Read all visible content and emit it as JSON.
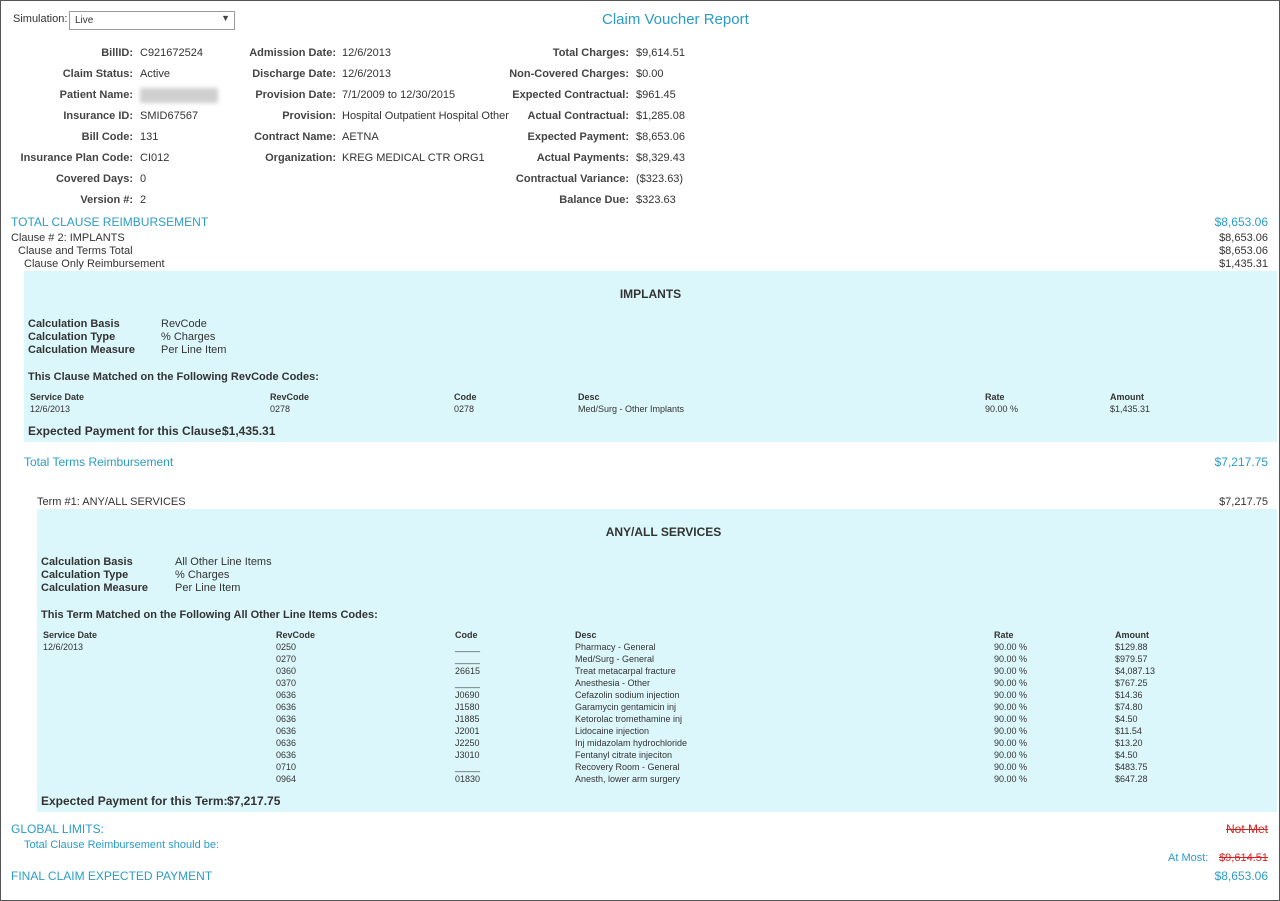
{
  "simulation": {
    "label": "Simulation:",
    "value": "Live"
  },
  "title": "Claim Voucher Report",
  "info": {
    "col1": [
      {
        "label": "BillID:",
        "value": "C921672524"
      },
      {
        "label": "Claim Status:",
        "value": "Active"
      },
      {
        "label": "Patient Name:",
        "value": ""
      },
      {
        "label": "Insurance ID:",
        "value": "SMID67567"
      },
      {
        "label": "Bill Code:",
        "value": "131"
      },
      {
        "label": "Insurance Plan Code:",
        "value": "CI012"
      },
      {
        "label": "Covered Days:",
        "value": "0"
      },
      {
        "label": "Version #:",
        "value": "2"
      }
    ],
    "col2": [
      {
        "label": "Admission Date:",
        "value": "12/6/2013"
      },
      {
        "label": "Discharge Date:",
        "value": "12/6/2013"
      },
      {
        "label": "Provision Date:",
        "value": "7/1/2009 to 12/30/2015"
      },
      {
        "label": "Provision:",
        "value": "Hospital Outpatient Hospital Other"
      },
      {
        "label": "Contract Name:",
        "value": "AETNA"
      },
      {
        "label": "Organization:",
        "value": "KREG MEDICAL CTR ORG1"
      }
    ],
    "col3": [
      {
        "label": "Total Charges:",
        "value": "$9,614.51"
      },
      {
        "label": "Non-Covered Charges:",
        "value": "$0.00"
      },
      {
        "label": "Expected Contractual:",
        "value": "$961.45"
      },
      {
        "label": "Actual Contractual:",
        "value": "$1,285.08"
      },
      {
        "label": "Expected Payment:",
        "value": "$8,653.06"
      },
      {
        "label": "Actual Payments:",
        "value": "$8,329.43"
      },
      {
        "label": "Contractual Variance:",
        "value": "($323.63)"
      },
      {
        "label": "Balance Due:",
        "value": "$323.63"
      }
    ]
  },
  "total_clause": {
    "label": "TOTAL CLAUSE REIMBURSEMENT",
    "value": "$8,653.06"
  },
  "clause": {
    "label": "Clause # 2: IMPLANTS",
    "value": "$8,653.06",
    "terms_total_label": "Clause and Terms Total",
    "terms_total_value": "$8,653.06",
    "only_label": "Clause Only Reimbursement",
    "only_value": "$1,435.31"
  },
  "implants": {
    "heading": "IMPLANTS",
    "calc": [
      {
        "label": "Calculation Basis",
        "value": "RevCode"
      },
      {
        "label": "Calculation Type",
        "value": "% Charges"
      },
      {
        "label": "Calculation Measure",
        "value": "Per Line Item"
      }
    ],
    "matched_label": "This Clause Matched on the Following RevCode Codes:",
    "headers": {
      "date": "Service Date",
      "rev": "RevCode",
      "code": "Code",
      "desc": "Desc",
      "rate": "Rate",
      "amount": "Amount"
    },
    "rows": [
      {
        "date": "12/6/2013",
        "rev": "0278",
        "code": "0278",
        "desc": "Med/Surg - Other Implants",
        "rate": "90.00 %",
        "amount": "$1,435.31"
      }
    ],
    "expected_label": "Expected Payment for this Clause:",
    "expected_value": "$1,435.31"
  },
  "total_terms": {
    "label": "Total Terms Reimbursement",
    "value": "$7,217.75"
  },
  "term": {
    "label": "Term #1: ANY/ALL SERVICES",
    "value": "$7,217.75"
  },
  "services": {
    "heading": "ANY/ALL SERVICES",
    "calc": [
      {
        "label": "Calculation Basis",
        "value": "All Other Line Items"
      },
      {
        "label": "Calculation Type",
        "value": "% Charges"
      },
      {
        "label": "Calculation Measure",
        "value": "Per Line Item"
      }
    ],
    "matched_label": "This Term Matched on the Following All Other Line Items Codes:",
    "headers": {
      "date": "Service Date",
      "rev": "RevCode",
      "code": "Code",
      "desc": "Desc",
      "rate": "Rate",
      "amount": "Amount"
    },
    "service_date": "12/6/2013",
    "rows": [
      {
        "rev": "0250",
        "code": "_____",
        "desc": "Pharmacy - General",
        "rate": "90.00 %",
        "amount": "$129.88"
      },
      {
        "rev": "0270",
        "code": "_____",
        "desc": "Med/Surg - General",
        "rate": "90.00 %",
        "amount": "$979.57"
      },
      {
        "rev": "0360",
        "code": "26615",
        "desc": "Treat metacarpal fracture",
        "rate": "90.00 %",
        "amount": "$4,087.13"
      },
      {
        "rev": "0370",
        "code": "_____",
        "desc": "Anesthesia - Other",
        "rate": "90.00 %",
        "amount": "$767.25"
      },
      {
        "rev": "0636",
        "code": "J0690",
        "desc": "Cefazolin sodium injection",
        "rate": "90.00 %",
        "amount": "$14.36"
      },
      {
        "rev": "0636",
        "code": "J1580",
        "desc": "Garamycin gentamicin inj",
        "rate": "90.00 %",
        "amount": "$74.80"
      },
      {
        "rev": "0636",
        "code": "J1885",
        "desc": "Ketorolac tromethamine inj",
        "rate": "90.00 %",
        "amount": "$4.50"
      },
      {
        "rev": "0636",
        "code": "J2001",
        "desc": "Lidocaine injection",
        "rate": "90.00 %",
        "amount": "$11.54"
      },
      {
        "rev": "0636",
        "code": "J2250",
        "desc": "Inj midazolam hydrochloride",
        "rate": "90.00 %",
        "amount": "$13.20"
      },
      {
        "rev": "0636",
        "code": "J3010",
        "desc": "Fentanyl citrate injeciton",
        "rate": "90.00 %",
        "amount": "$4.50"
      },
      {
        "rev": "0710",
        "code": "_____",
        "desc": "Recovery Room - General",
        "rate": "90.00 %",
        "amount": "$483.75"
      },
      {
        "rev": "0964",
        "code": "01830",
        "desc": "Anesth, lower arm surgery",
        "rate": "90.00 %",
        "amount": "$647.28"
      }
    ],
    "expected_label": "Expected Payment for this Term:",
    "expected_value": "$7,217.75"
  },
  "global": {
    "label": "GLOBAL LIMITS:",
    "status": "Not Met",
    "should_be_label": "Total Clause Reimbursement should be:",
    "at_most_label": "At Most:",
    "at_most_value": "$9,614.51"
  },
  "final": {
    "label": "FINAL CLAIM EXPECTED PAYMENT",
    "value": "$8,653.06"
  },
  "colors": {
    "accent": "#2b9cc7",
    "panel": "#dcf7fb",
    "green": "#2a8a2a",
    "red": "#d62020"
  }
}
